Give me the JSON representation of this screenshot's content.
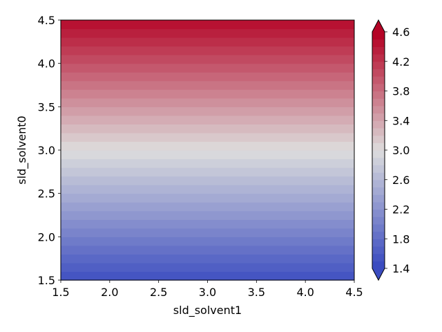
{
  "chart_data": {
    "type": "heatmap",
    "subtype": "filled-contour",
    "title": "",
    "xlabel": "sld_solvent1",
    "ylabel": "sld_solvent0",
    "xlim": [
      1.5,
      4.5
    ],
    "ylim": [
      1.5,
      4.5
    ],
    "x_ticks": [
      "1.5",
      "2.0",
      "2.5",
      "3.0",
      "3.5",
      "4.0",
      "4.5"
    ],
    "y_ticks": [
      "1.5",
      "2.0",
      "2.5",
      "3.0",
      "3.5",
      "4.0",
      "4.5"
    ],
    "colormap": "coolwarm",
    "field_description": "value increases with sld_solvent0 (rows); nearly constant along sld_solvent1",
    "row_values": [
      1.5,
      2.0,
      2.5,
      3.0,
      3.5,
      4.0,
      4.5
    ],
    "levels": [
      1.4,
      1.5,
      1.6,
      1.7,
      1.8,
      1.9,
      2.0,
      2.1,
      2.2,
      2.3,
      2.4,
      2.5,
      2.6,
      2.7,
      2.8,
      2.9,
      3.0,
      3.1,
      3.2,
      3.3,
      3.4,
      3.5,
      3.6,
      3.7,
      3.8,
      3.9,
      4.0,
      4.1,
      4.2,
      4.3,
      4.4,
      4.5,
      4.6
    ],
    "colorbar": {
      "range": [
        1.4,
        4.6
      ],
      "ticks": [
        "1.4",
        "1.8",
        "2.2",
        "2.6",
        "3.0",
        "3.4",
        "3.8",
        "4.2",
        "4.6"
      ],
      "extend": "both"
    },
    "colors": {
      "low": "#3b4cc0",
      "mid": "#dddddd",
      "high": "#b40426"
    }
  }
}
